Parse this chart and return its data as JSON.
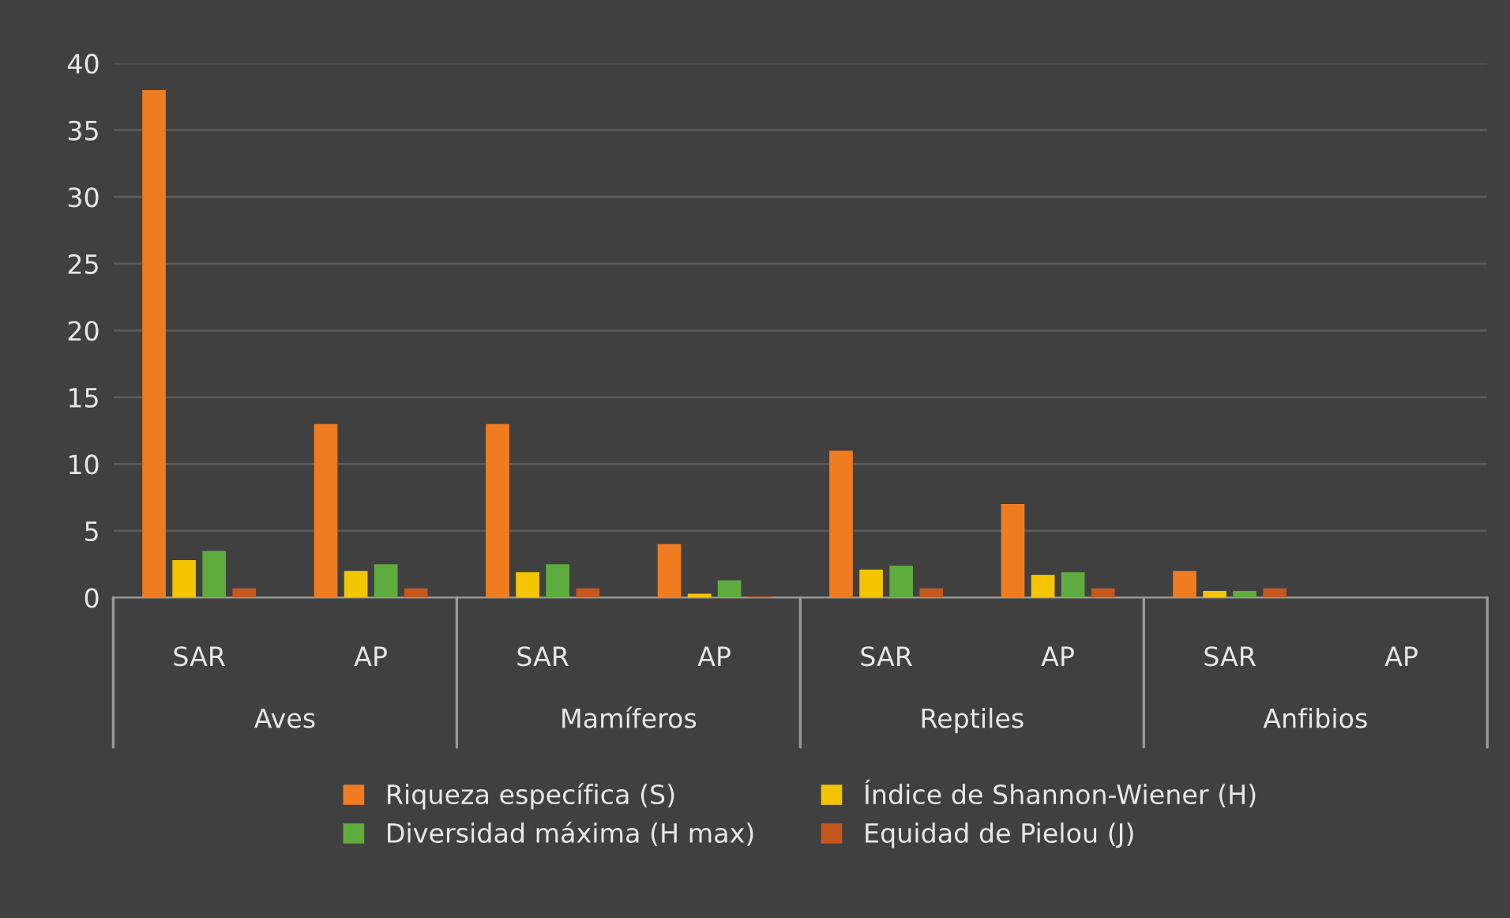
{
  "chart_data": {
    "type": "bar",
    "categories": [
      "SAR",
      "AP",
      "SAR",
      "AP",
      "SAR",
      "AP",
      "SAR",
      "AP"
    ],
    "annotations": [
      "Aves",
      "Mamíferos",
      "Reptiles",
      "Anfibios"
    ],
    "series": [
      {
        "name": "Riqueza específica (S)",
        "color": "#f07c22",
        "values": [
          38,
          13,
          13,
          4,
          11,
          7,
          2,
          0
        ]
      },
      {
        "name": "Índice de Shannon-Wiener (H)",
        "color": "#f5c400",
        "values": [
          2.8,
          2.0,
          1.9,
          0.3,
          2.1,
          1.7,
          0.5,
          0
        ]
      },
      {
        "name": "Diversidad máxima (H max)",
        "color": "#5fac3e",
        "values": [
          3.5,
          2.5,
          2.5,
          1.3,
          2.4,
          1.9,
          0.5,
          0
        ]
      },
      {
        "name": "Equidad de Pielou (J)",
        "color": "#c4581d",
        "values": [
          0.7,
          0.7,
          0.7,
          0.1,
          0.7,
          0.7,
          0.7,
          0
        ]
      }
    ],
    "ylim": [
      0,
      40
    ],
    "yticks": [
      0,
      5,
      10,
      15,
      20,
      25,
      30,
      35,
      40
    ],
    "grid": "y",
    "legend": "bottom"
  }
}
